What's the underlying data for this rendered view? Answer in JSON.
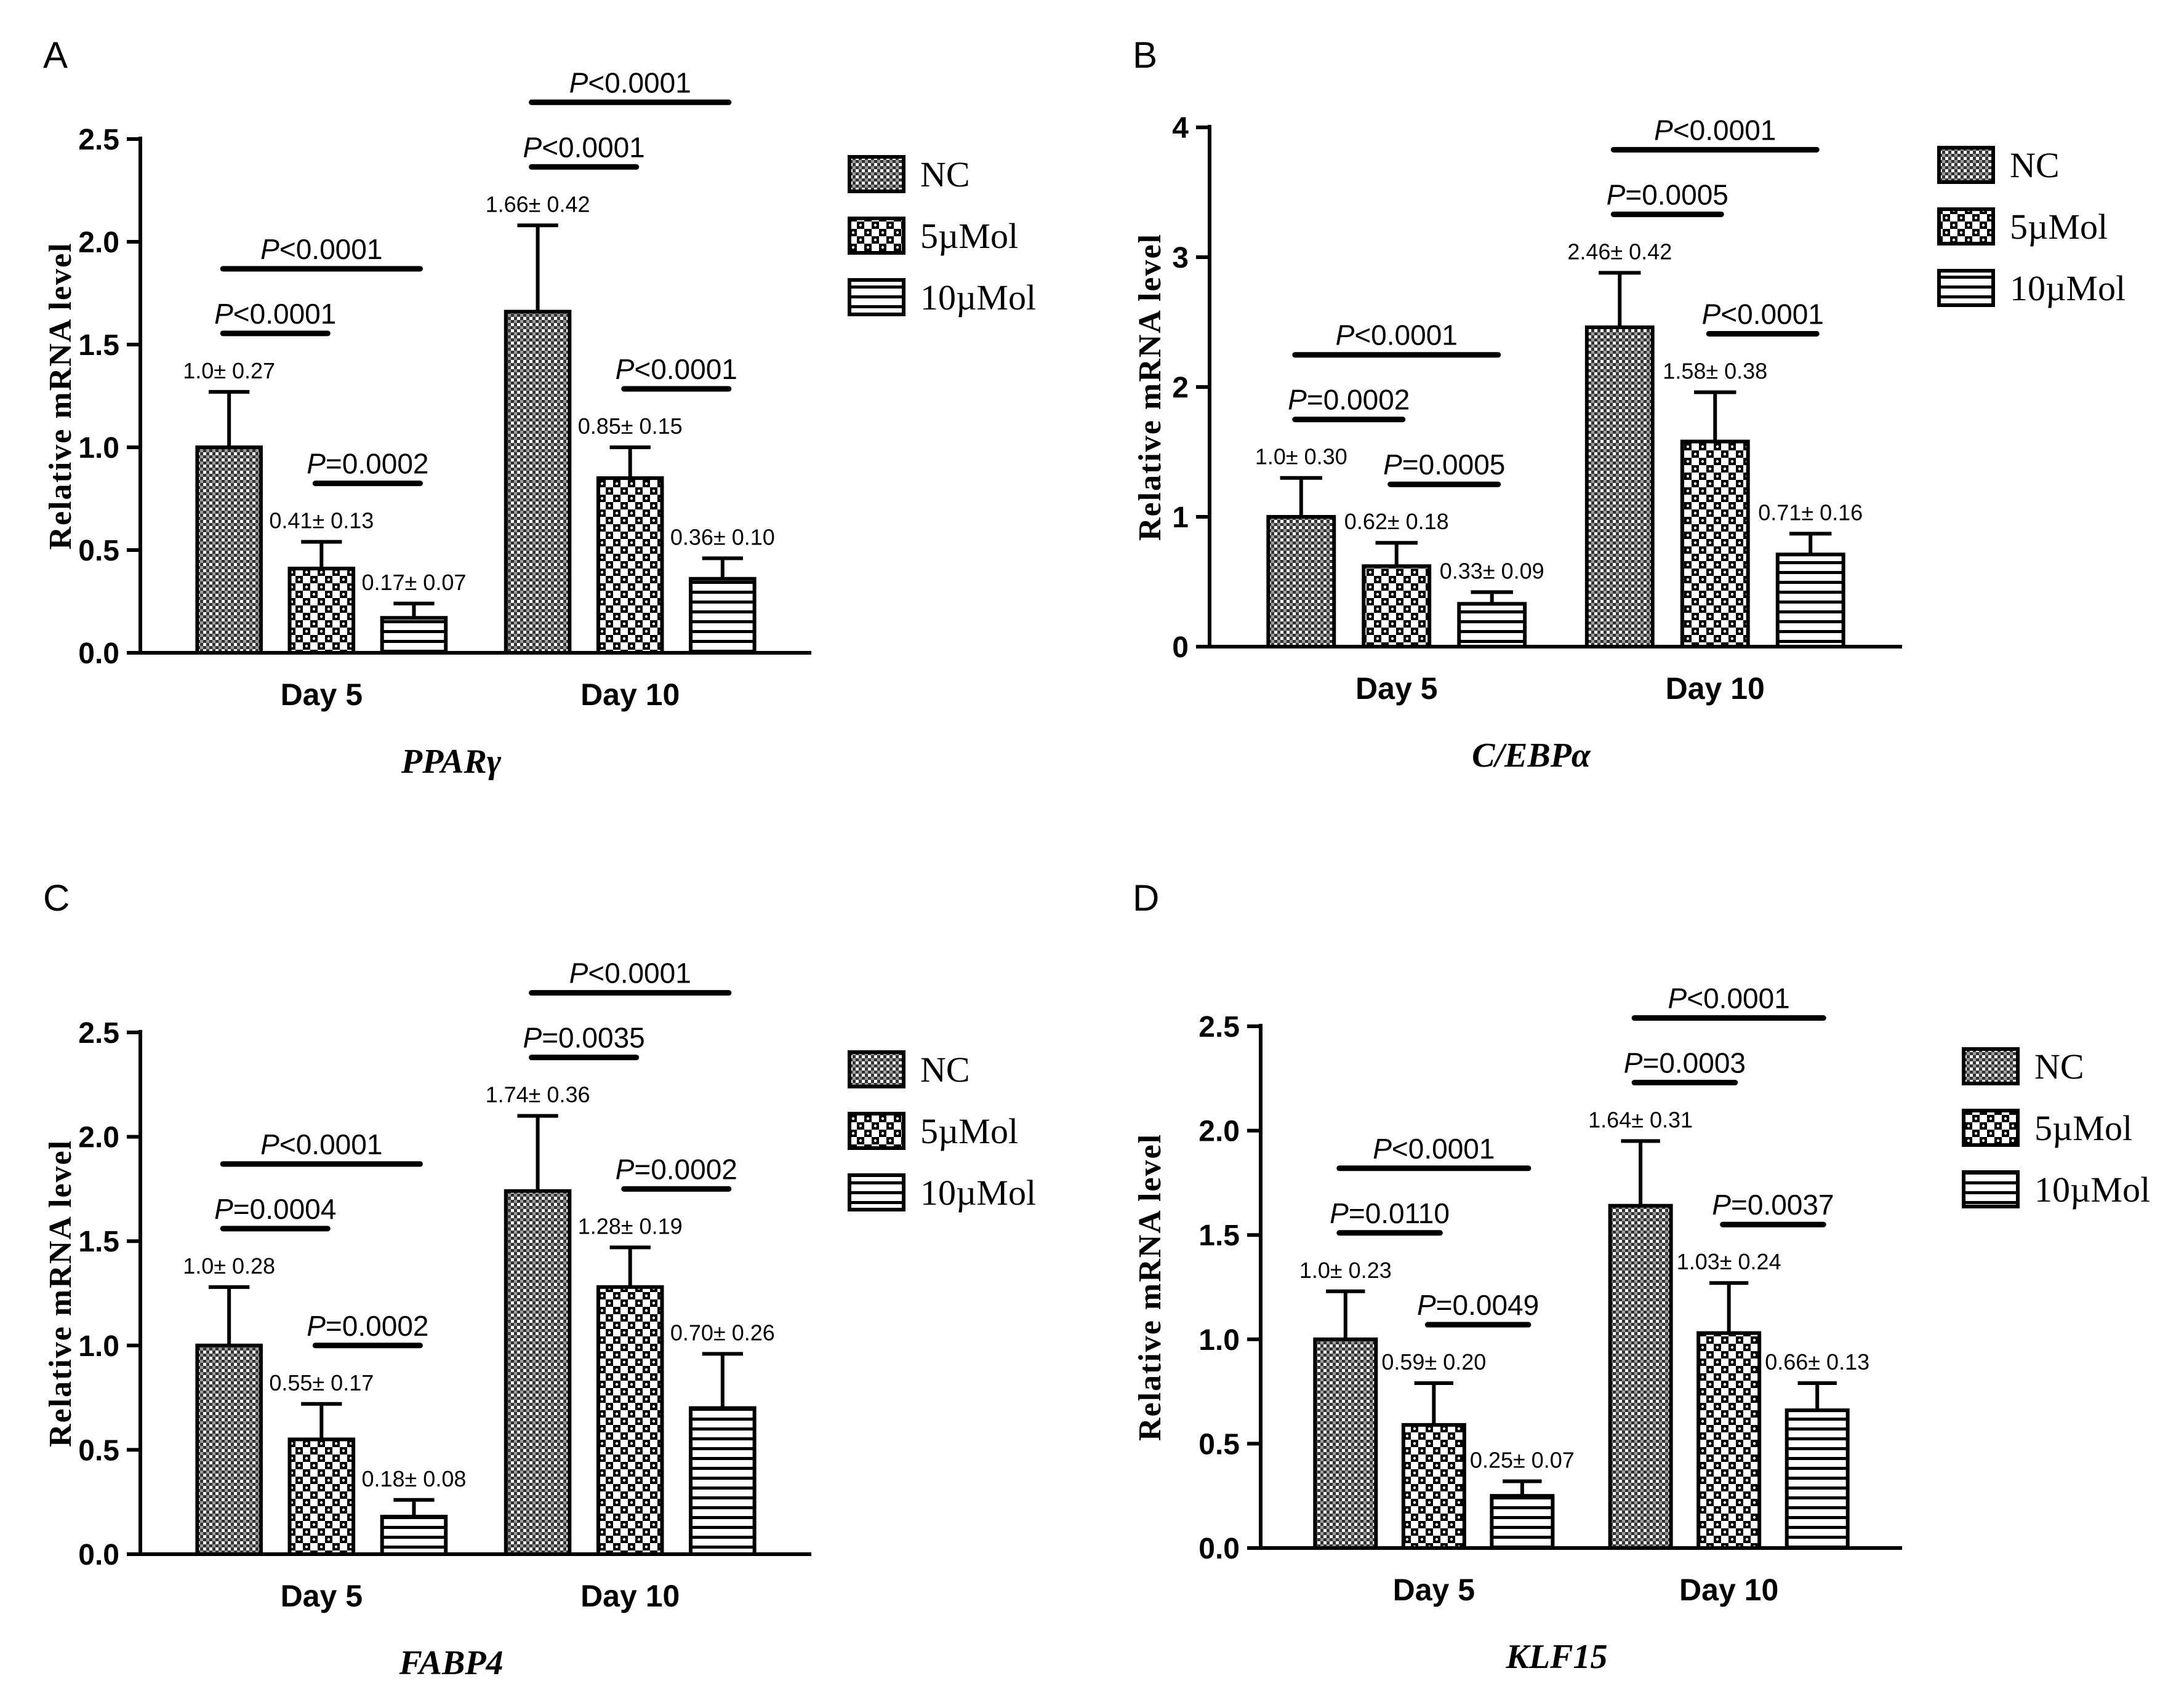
{
  "legend_labels": [
    "NC",
    "5µMol",
    "10µMol"
  ],
  "colors": {
    "ink": "#000000",
    "background": "#ffffff"
  },
  "chart_data": [
    {
      "panel": "A",
      "type": "bar",
      "gene": "PPARγ",
      "ylabel": "Relative mRNA level",
      "ylim": [
        0,
        2.5
      ],
      "yticks": [
        "0.0",
        "0.5",
        "1.0",
        "1.5",
        "2.0",
        "2.5"
      ],
      "categories": [
        "Day 5",
        "Day 10"
      ],
      "series": [
        {
          "name": "NC",
          "values": [
            1.0,
            1.66
          ],
          "errors": [
            0.27,
            0.42
          ],
          "value_labels": [
            "1.0± 0.27",
            "1.66± 0.42"
          ]
        },
        {
          "name": "5µMol",
          "values": [
            0.41,
            0.85
          ],
          "errors": [
            0.13,
            0.15
          ],
          "value_labels": [
            "0.41± 0.13",
            "0.85± 0.15"
          ]
        },
        {
          "name": "10µMol",
          "values": [
            0.17,
            0.36
          ],
          "errors": [
            0.07,
            0.1
          ],
          "value_labels": [
            "0.17± 0.07",
            "0.36± 0.10"
          ]
        }
      ],
      "significance": [
        {
          "category": 0,
          "from": 0,
          "to": 2,
          "label": "P<0.0001"
        },
        {
          "category": 0,
          "from": 0,
          "to": 1,
          "label": "P<0.0001"
        },
        {
          "category": 0,
          "from": 1,
          "to": 2,
          "label": "P=0.0002"
        },
        {
          "category": 1,
          "from": 0,
          "to": 2,
          "label": "P<0.0001"
        },
        {
          "category": 1,
          "from": 0,
          "to": 1,
          "label": "P<0.0001"
        },
        {
          "category": 1,
          "from": 1,
          "to": 2,
          "label": "P<0.0001"
        }
      ]
    },
    {
      "panel": "B",
      "type": "bar",
      "gene": "C/EBPα",
      "ylabel": "Relative mRNA level",
      "ylim": [
        0,
        4
      ],
      "yticks": [
        "0",
        "1",
        "2",
        "3",
        "4"
      ],
      "categories": [
        "Day 5",
        "Day 10"
      ],
      "series": [
        {
          "name": "NC",
          "values": [
            1.0,
            2.46
          ],
          "errors": [
            0.3,
            0.42
          ],
          "value_labels": [
            "1.0± 0.30",
            "2.46± 0.42"
          ]
        },
        {
          "name": "5µMol",
          "values": [
            0.62,
            1.58
          ],
          "errors": [
            0.18,
            0.38
          ],
          "value_labels": [
            "0.62± 0.18",
            "1.58± 0.38"
          ]
        },
        {
          "name": "10µMol",
          "values": [
            0.33,
            0.71
          ],
          "errors": [
            0.09,
            0.16
          ],
          "value_labels": [
            "0.33± 0.09",
            "0.71± 0.16"
          ]
        }
      ],
      "significance": [
        {
          "category": 0,
          "from": 0,
          "to": 2,
          "label": "P<0.0001"
        },
        {
          "category": 0,
          "from": 0,
          "to": 1,
          "label": "P=0.0002"
        },
        {
          "category": 0,
          "from": 1,
          "to": 2,
          "label": "P=0.0005"
        },
        {
          "category": 1,
          "from": 0,
          "to": 2,
          "label": "P<0.0001"
        },
        {
          "category": 1,
          "from": 0,
          "to": 1,
          "label": "P=0.0005"
        },
        {
          "category": 1,
          "from": 1,
          "to": 2,
          "label": "P<0.0001"
        }
      ]
    },
    {
      "panel": "C",
      "type": "bar",
      "gene": "FABP4",
      "ylabel": "Relative mRNA level",
      "ylim": [
        0,
        2.5
      ],
      "yticks": [
        "0.0",
        "0.5",
        "1.0",
        "1.5",
        "2.0",
        "2.5"
      ],
      "categories": [
        "Day 5",
        "Day 10"
      ],
      "series": [
        {
          "name": "NC",
          "values": [
            1.0,
            1.74
          ],
          "errors": [
            0.28,
            0.36
          ],
          "value_labels": [
            "1.0± 0.28",
            "1.74± 0.36"
          ]
        },
        {
          "name": "5µMol",
          "values": [
            0.55,
            1.28
          ],
          "errors": [
            0.17,
            0.19
          ],
          "value_labels": [
            "0.55± 0.17",
            "1.28± 0.19"
          ]
        },
        {
          "name": "10µMol",
          "values": [
            0.18,
            0.7
          ],
          "errors": [
            0.08,
            0.26
          ],
          "value_labels": [
            "0.18± 0.08",
            "0.70± 0.26"
          ]
        }
      ],
      "significance": [
        {
          "category": 0,
          "from": 0,
          "to": 2,
          "label": "P<0.0001"
        },
        {
          "category": 0,
          "from": 0,
          "to": 1,
          "label": "P=0.0004"
        },
        {
          "category": 0,
          "from": 1,
          "to": 2,
          "label": "P=0.0002"
        },
        {
          "category": 1,
          "from": 0,
          "to": 2,
          "label": "P<0.0001"
        },
        {
          "category": 1,
          "from": 0,
          "to": 1,
          "label": "P=0.0035"
        },
        {
          "category": 1,
          "from": 1,
          "to": 2,
          "label": "P=0.0002"
        }
      ]
    },
    {
      "panel": "D",
      "type": "bar",
      "gene": "KLF15",
      "ylabel": "Relative mRNA level",
      "ylim": [
        0,
        2.5
      ],
      "yticks": [
        "0.0",
        "0.5",
        "1.0",
        "1.5",
        "2.0",
        "2.5"
      ],
      "categories": [
        "Day 5",
        "Day 10"
      ],
      "series": [
        {
          "name": "NC",
          "values": [
            1.0,
            1.64
          ],
          "errors": [
            0.23,
            0.31
          ],
          "value_labels": [
            "1.0± 0.23",
            "1.64± 0.31"
          ]
        },
        {
          "name": "5µMol",
          "values": [
            0.59,
            1.03
          ],
          "errors": [
            0.2,
            0.24
          ],
          "value_labels": [
            "0.59± 0.20",
            "1.03± 0.24"
          ]
        },
        {
          "name": "10µMol",
          "values": [
            0.25,
            0.66
          ],
          "errors": [
            0.07,
            0.13
          ],
          "value_labels": [
            "0.25± 0.07",
            "0.66± 0.13"
          ]
        }
      ],
      "significance": [
        {
          "category": 0,
          "from": 0,
          "to": 2,
          "label": "P<0.0001"
        },
        {
          "category": 0,
          "from": 0,
          "to": 1,
          "label": "P=0.0110"
        },
        {
          "category": 0,
          "from": 1,
          "to": 2,
          "label": "P=0.0049"
        },
        {
          "category": 1,
          "from": 0,
          "to": 2,
          "label": "P<0.0001"
        },
        {
          "category": 1,
          "from": 0,
          "to": 1,
          "label": "P=0.0003"
        },
        {
          "category": 1,
          "from": 1,
          "to": 2,
          "label": "P=0.0037"
        }
      ]
    }
  ]
}
